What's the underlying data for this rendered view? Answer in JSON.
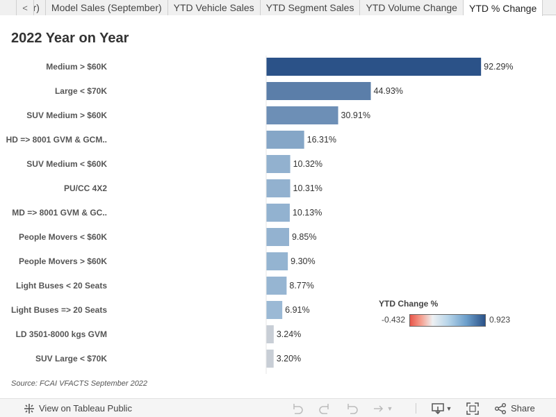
{
  "tabs": [
    {
      "label": "ber)",
      "active": false
    },
    {
      "label": "Model Sales (September)",
      "active": false
    },
    {
      "label": "YTD Vehicle Sales",
      "active": false
    },
    {
      "label": "YTD Segment Sales",
      "active": false
    },
    {
      "label": "YTD Volume Change",
      "active": false
    },
    {
      "label": "YTD % Change",
      "active": true
    }
  ],
  "tab_prev_glyph": "<",
  "title": "2022 Year on Year",
  "source": "Source: FCAI VFACTS September 2022",
  "legend": {
    "title": "YTD Change %",
    "min": "-0.432",
    "max": "0.923"
  },
  "toolbar": {
    "view_label": "View on Tableau Public",
    "share_label": "Share",
    "icons": [
      "tableau-icon",
      "undo-icon",
      "redo-icon",
      "revert-icon",
      "refresh-icon",
      "download-icon",
      "fullscreen-icon",
      "share-icon"
    ]
  },
  "chart_data": {
    "type": "bar",
    "orientation": "horizontal",
    "categories": [
      "Medium > $60K",
      "Large < $70K",
      "SUV Medium > $60K",
      "HD => 8001 GVM & GCM..",
      "SUV Medium < $60K",
      "PU/CC 4X2",
      "MD => 8001 GVM & GC..",
      "People Movers < $60K",
      "People Movers > $60K",
      "Light Buses < 20 Seats",
      "Light Buses => 20 Seats",
      "LD 3501-8000 kgs GVM",
      "SUV Large < $70K"
    ],
    "values": [
      92.29,
      44.93,
      30.91,
      16.31,
      10.32,
      10.31,
      10.13,
      9.85,
      9.3,
      8.77,
      6.91,
      3.24,
      3.2
    ],
    "value_labels": [
      "92.29%",
      "44.93%",
      "30.91%",
      "16.31%",
      "10.32%",
      "10.31%",
      "10.13%",
      "9.85%",
      "9.30%",
      "8.77%",
      "6.91%",
      "3.24%",
      "3.20%"
    ],
    "color_scale": {
      "min": -0.432,
      "max": 0.923,
      "colors": [
        "#e8564a",
        "#eef0f2",
        "#2b5288"
      ]
    },
    "xlim": [
      0,
      100
    ],
    "title": "2022 Year on Year",
    "xlabel": "",
    "ylabel": "",
    "grid": false
  }
}
